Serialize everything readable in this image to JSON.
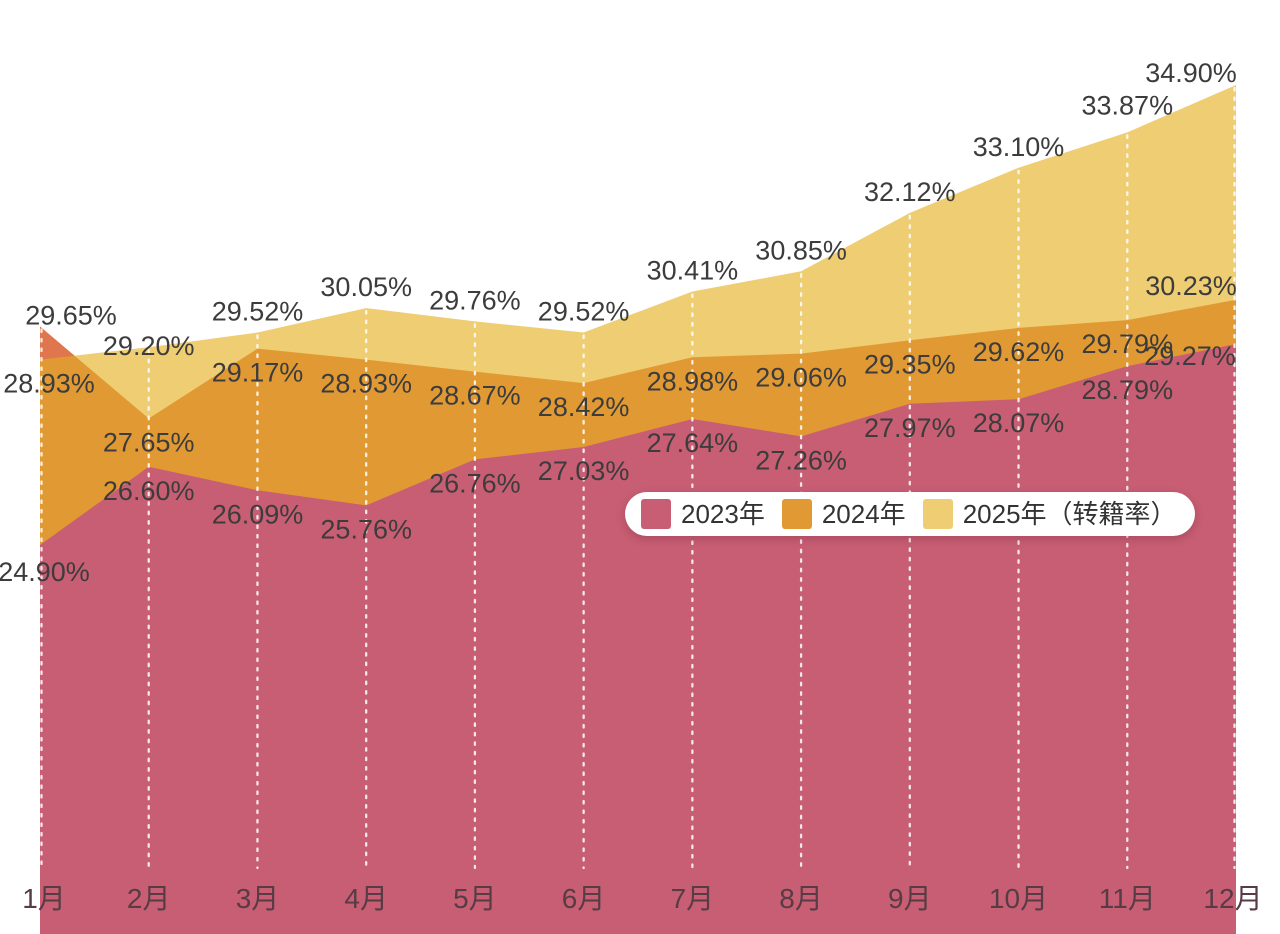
{
  "chart_data": {
    "type": "area",
    "mode": "overlapping",
    "title": "",
    "categories": [
      "1月",
      "2月",
      "3月",
      "4月",
      "5月",
      "6月",
      "7月",
      "8月",
      "9月",
      "10月",
      "11月",
      "12月"
    ],
    "series": [
      {
        "name": "2023年",
        "color": "#c85e73",
        "values": [
          24.9,
          26.6,
          26.09,
          25.76,
          26.76,
          27.03,
          27.64,
          27.26,
          27.97,
          28.07,
          28.79,
          29.27
        ]
      },
      {
        "name": "2024年",
        "color": "#e19a33",
        "values": [
          29.65,
          27.65,
          29.17,
          28.93,
          28.67,
          28.42,
          28.98,
          29.06,
          29.35,
          29.62,
          29.79,
          30.23
        ]
      },
      {
        "name": "2025年（转籍率）",
        "color": "#efcd72",
        "values": [
          28.93,
          29.2,
          29.52,
          30.05,
          29.76,
          29.52,
          30.41,
          30.85,
          32.12,
          33.1,
          33.87,
          34.9
        ]
      }
    ],
    "value_suffix": "%",
    "label_decimals": 2,
    "ylim": [
      16.4,
      35.4
    ],
    "y_axis_visible": false,
    "grid": {
      "vertical_dotted": true,
      "color": "#ffffff"
    },
    "overlap_highlight": {
      "month_index": 0,
      "color": "#e0764d"
    },
    "legend_position": "overlay-center-right",
    "background": "#ffffff",
    "text_colors": {
      "value_labels": "#3c3c3c",
      "month_labels": "#573b45"
    }
  },
  "legend": {
    "items": [
      {
        "label": "2023年",
        "color": "#c85e73"
      },
      {
        "label": "2024年",
        "color": "#e19a33"
      },
      {
        "label": "2025年（转籍率）",
        "color": "#efcd72"
      }
    ]
  }
}
